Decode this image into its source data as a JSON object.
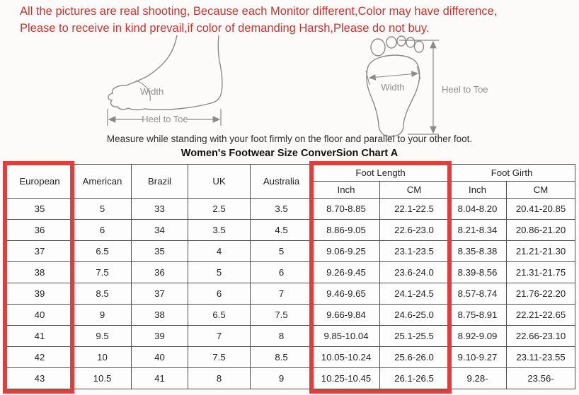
{
  "notice": {
    "line1": "All the pictures are real shooting, Because each Monitor different,Color may have difference,",
    "line2": "Please to receive in kind prevail,if color of demanding Harsh,Please do not buy.",
    "color": "#bf3730"
  },
  "diagram": {
    "side_view": {
      "width_label": "Width",
      "length_label": "Heel to Toe"
    },
    "bottom_view": {
      "width_label": "Width",
      "length_label": "Heel to Toe"
    },
    "caption": "Measure while standing with your foot firmly on the floor and parallel to your other foot."
  },
  "table": {
    "title": "Women's Footwear Size ConverSion Chart A",
    "simple_headers": [
      "European",
      "American",
      "Brazil",
      "UK",
      "Australia"
    ],
    "group_headers": [
      {
        "label": "Foot Length",
        "sub": [
          "Inch",
          "CM"
        ]
      },
      {
        "label": "Foot Girth",
        "sub": [
          "Inch",
          "CM"
        ]
      }
    ],
    "rows": [
      [
        "35",
        "5",
        "33",
        "2.5",
        "3.5",
        "8.70-8.85",
        "22.1-22.5",
        "8.04-8.20",
        "20.41-20.85"
      ],
      [
        "36",
        "6",
        "34",
        "3.5",
        "4.5",
        "8.86-9.05",
        "22.6-23.0",
        "8.21-8.34",
        "20.86-21.20"
      ],
      [
        "37",
        "6.5",
        "35",
        "4",
        "5",
        "9.06-9.25",
        "23.1-23.5",
        "8.35-8.38",
        "21.21-21.30"
      ],
      [
        "38",
        "7.5",
        "36",
        "5",
        "6",
        "9.26-9.45",
        "23.6-24.0",
        "8.39-8.56",
        "21.31-21.75"
      ],
      [
        "39",
        "8.5",
        "37",
        "6",
        "7",
        "9.46-9.65",
        "24.1-24.5",
        "8.57-8.74",
        "21.76-22.20"
      ],
      [
        "40",
        "9",
        "38",
        "6.5",
        "7.5",
        "9.66-9.84",
        "24.6-25.0",
        "8.75-8.91",
        "22.21-22.65"
      ],
      [
        "41",
        "9.5",
        "39",
        "7",
        "8",
        "9.85-10.04",
        "25.1-25.5",
        "8.92-9.09",
        "22.66-23.10"
      ],
      [
        "42",
        "10",
        "40",
        "7.5",
        "8.5",
        "10.05-10.24",
        "25.6-26.0",
        "9.10-9.27",
        "23.11-23.55"
      ],
      [
        "43",
        "10.5",
        "41",
        "8",
        "9",
        "10.25-10.45",
        "26.1-26.5",
        "9.28-",
        "23.56-"
      ]
    ],
    "highlight_color": "#df3e3b",
    "highlighted_columns": [
      "European",
      "Foot Length"
    ]
  }
}
